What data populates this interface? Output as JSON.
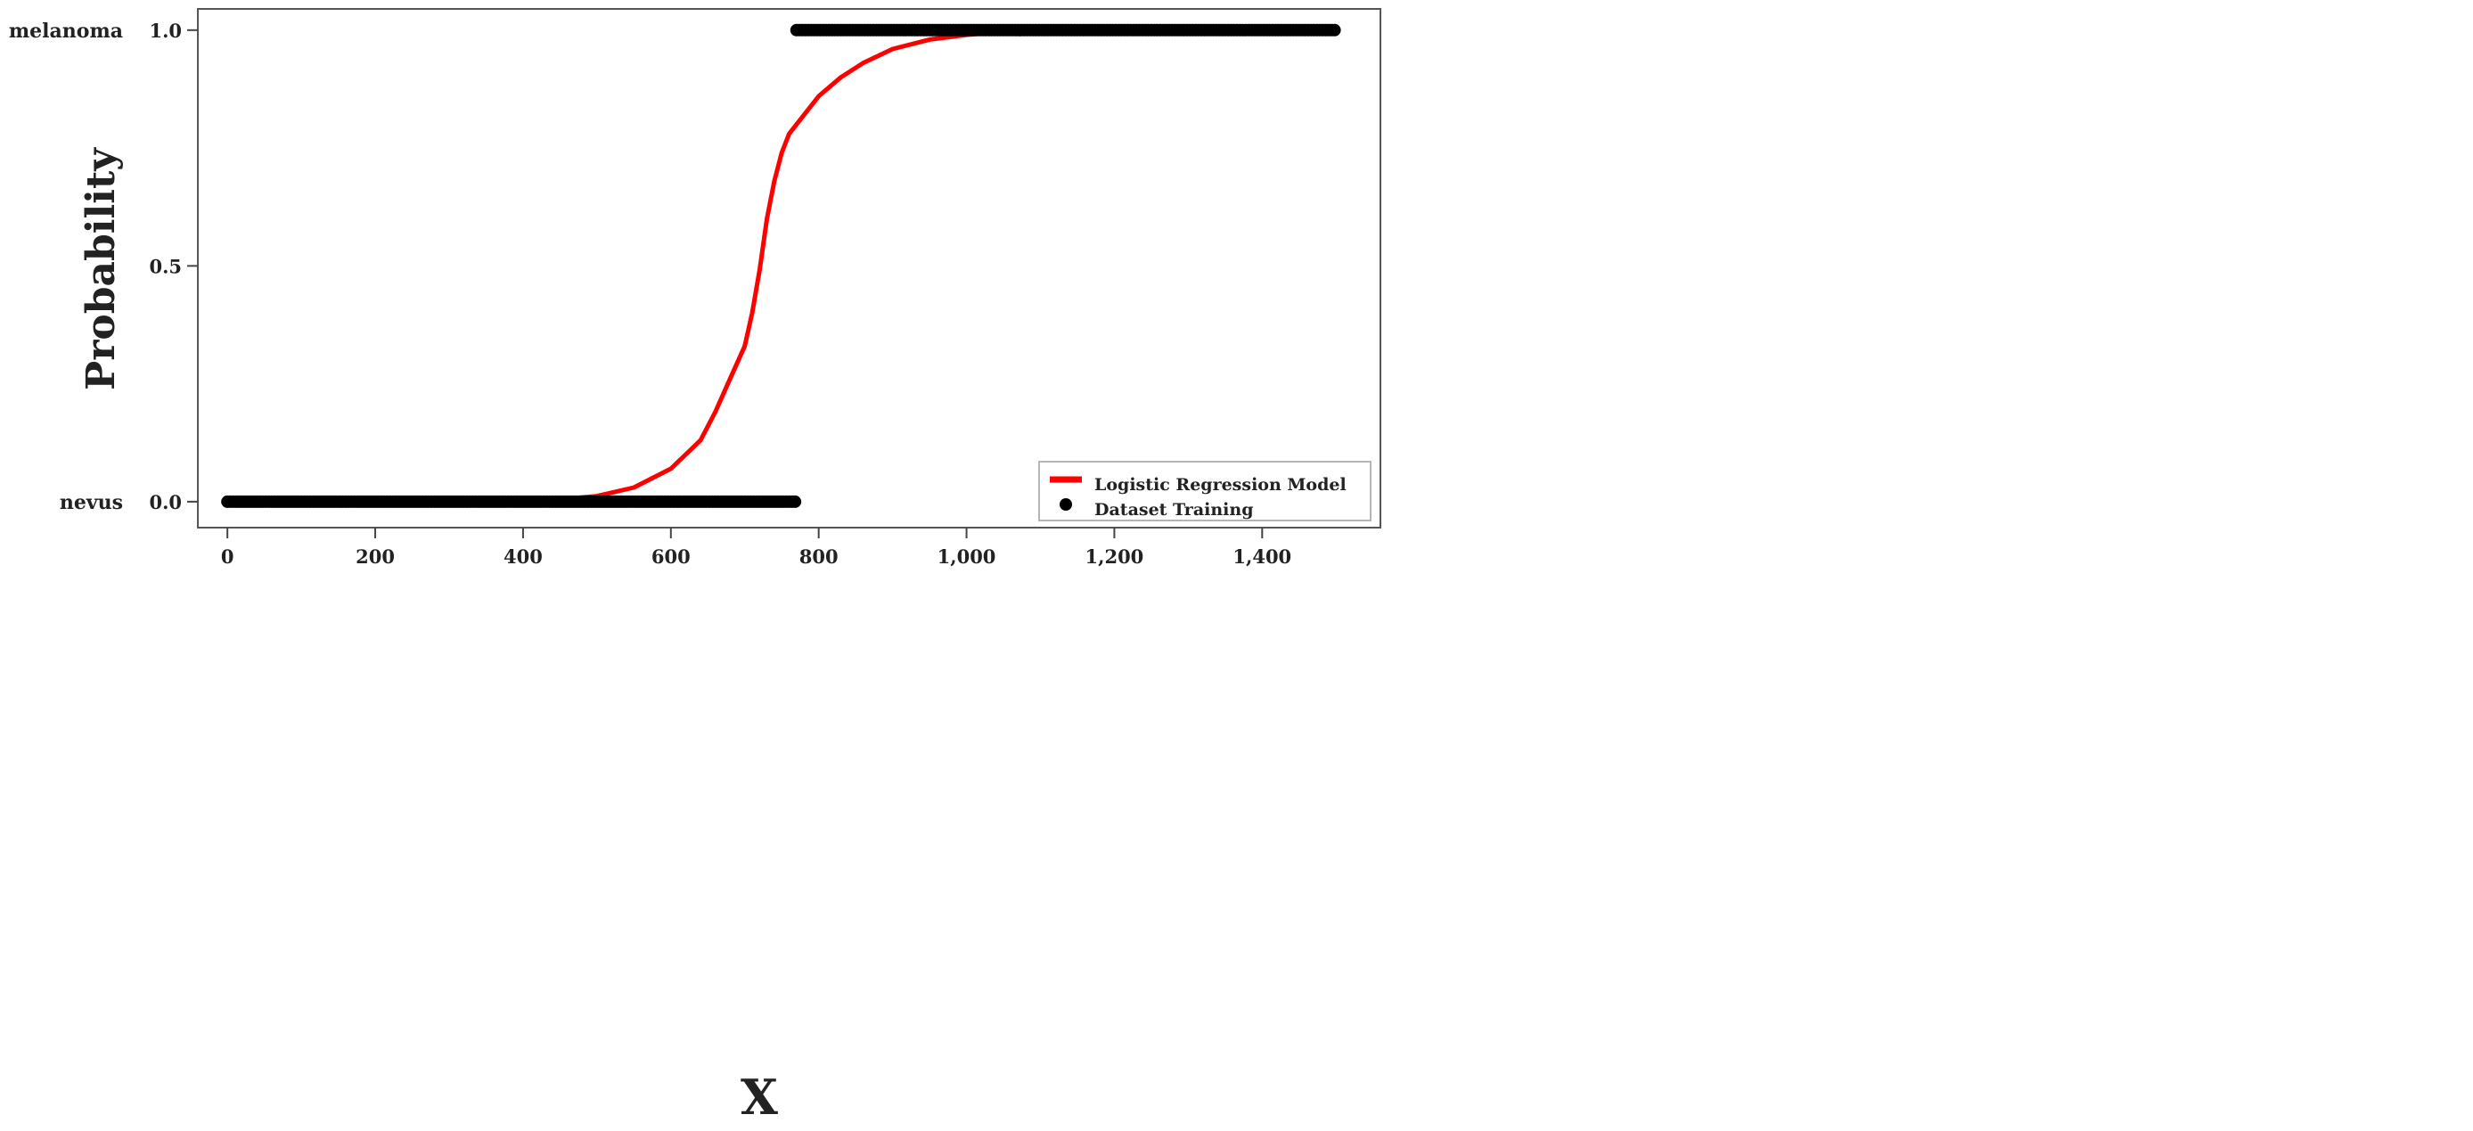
{
  "chart_data": {
    "type": "scatter",
    "title": "",
    "xlabel": "X",
    "ylabel": "Probability",
    "xlim": [
      -40,
      1560
    ],
    "ylim": [
      -0.055,
      1.045
    ],
    "x_ticks": [
      {
        "value": 0,
        "label": "0"
      },
      {
        "value": 200,
        "label": "200"
      },
      {
        "value": 400,
        "label": "400"
      },
      {
        "value": 600,
        "label": "600"
      },
      {
        "value": 800,
        "label": "800"
      },
      {
        "value": 1000,
        "label": "1,000"
      },
      {
        "value": 1200,
        "label": "1,200"
      },
      {
        "value": 1400,
        "label": "1,400"
      }
    ],
    "y_ticks": [
      {
        "value": 0.0,
        "label": "0.0"
      },
      {
        "value": 0.5,
        "label": "0.5"
      },
      {
        "value": 1.0,
        "label": "1.0"
      }
    ],
    "class_labels": [
      {
        "value": 0.0,
        "label": "nevus"
      },
      {
        "value": 1.0,
        "label": "melanoma"
      }
    ],
    "grid": false,
    "legend": {
      "placement": "bottom-right",
      "entries": [
        {
          "label": "Logistic Regression Model",
          "marker": "line",
          "color": "#ff0000"
        },
        {
          "label": "Dataset Training",
          "marker": "dot",
          "color": "#000000"
        }
      ]
    },
    "series": [
      {
        "name": "Logistic Regression Model",
        "kind": "line",
        "color": "#ff0000",
        "x": [
          400,
          450,
          500,
          550,
          600,
          620,
          640,
          660,
          680,
          700,
          710,
          720,
          730,
          740,
          750,
          760,
          780,
          800,
          830,
          860,
          900,
          950,
          1000,
          1050,
          1100
        ],
        "y": [
          0.0,
          0.005,
          0.012,
          0.03,
          0.07,
          0.1,
          0.13,
          0.19,
          0.26,
          0.33,
          0.4,
          0.49,
          0.6,
          0.68,
          0.74,
          0.78,
          0.82,
          0.86,
          0.9,
          0.93,
          0.96,
          0.98,
          0.99,
          0.997,
          1.0
        ]
      },
      {
        "name": "Dataset Training",
        "kind": "points",
        "color": "#000000",
        "groups": [
          {
            "label": "nevus",
            "y": 0,
            "x_start": 0,
            "x_end": 770,
            "step": 4
          },
          {
            "label": "melanoma",
            "y": 1,
            "x_start": 770,
            "x_end": 1500,
            "step": 4
          }
        ]
      }
    ]
  }
}
